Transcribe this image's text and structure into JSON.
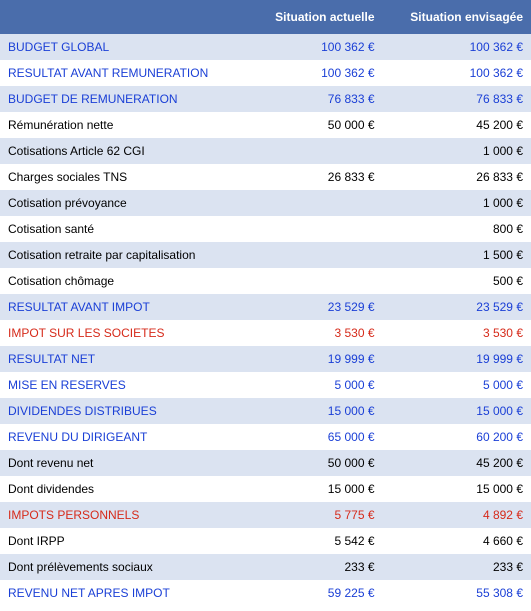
{
  "colors": {
    "header_bg": "#4a6dab",
    "header_text": "#ffffff",
    "row_alt_bg": "#dbe3f1",
    "row_bg": "#ffffff",
    "text_blue": "#1a3fd6",
    "text_red": "#d62a1a",
    "text_black": "#000000"
  },
  "table": {
    "headers": [
      "",
      "Situation actuelle",
      "Situation envisagée"
    ],
    "currency_suffix": " €",
    "rows": [
      {
        "label": "BUDGET GLOBAL",
        "actuelle": "100 362 €",
        "envisagee": "100 362 €",
        "color": "blue",
        "alt": true
      },
      {
        "label": "RESULTAT AVANT REMUNERATION",
        "actuelle": "100 362 €",
        "envisagee": "100 362 €",
        "color": "blue",
        "alt": false
      },
      {
        "label": "BUDGET DE REMUNERATION",
        "actuelle": "76 833 €",
        "envisagee": "76 833 €",
        "color": "blue",
        "alt": true
      },
      {
        "label": "Rémunération nette",
        "actuelle": "50 000 €",
        "envisagee": "45 200 €",
        "color": "black",
        "alt": false
      },
      {
        "label": "Cotisations Article 62 CGI",
        "actuelle": "",
        "envisagee": "1 000 €",
        "color": "black",
        "alt": true
      },
      {
        "label": "Charges sociales TNS",
        "actuelle": "26 833 €",
        "envisagee": "26 833 €",
        "color": "black",
        "alt": false
      },
      {
        "label": "Cotisation prévoyance",
        "actuelle": "",
        "envisagee": "1 000 €",
        "color": "black",
        "alt": true
      },
      {
        "label": "Cotisation santé",
        "actuelle": "",
        "envisagee": "800 €",
        "color": "black",
        "alt": false
      },
      {
        "label": "Cotisation retraite par capitalisation",
        "actuelle": "",
        "envisagee": "1 500 €",
        "color": "black",
        "alt": true
      },
      {
        "label": "Cotisation chômage",
        "actuelle": "",
        "envisagee": "500 €",
        "color": "black",
        "alt": false
      },
      {
        "label": "RESULTAT AVANT IMPOT",
        "actuelle": "23 529 €",
        "envisagee": "23 529 €",
        "color": "blue",
        "alt": true
      },
      {
        "label": "IMPOT SUR LES SOCIETES",
        "actuelle": "3 530 €",
        "envisagee": "3 530 €",
        "color": "red",
        "alt": false
      },
      {
        "label": "RESULTAT NET",
        "actuelle": "19 999 €",
        "envisagee": "19 999 €",
        "color": "blue",
        "alt": true
      },
      {
        "label": "MISE EN RESERVES",
        "actuelle": "5 000 €",
        "envisagee": "5 000 €",
        "color": "blue",
        "alt": false
      },
      {
        "label": "DIVIDENDES DISTRIBUES",
        "actuelle": "15 000 €",
        "envisagee": "15 000 €",
        "color": "blue",
        "alt": true
      },
      {
        "label": "REVENU DU DIRIGEANT",
        "actuelle": "65 000 €",
        "envisagee": "60 200 €",
        "color": "blue",
        "alt": false
      },
      {
        "label": "Dont revenu net",
        "actuelle": "50 000 €",
        "envisagee": "45 200 €",
        "color": "black",
        "alt": true
      },
      {
        "label": "Dont dividendes",
        "actuelle": "15 000 €",
        "envisagee": "15 000 €",
        "color": "black",
        "alt": false
      },
      {
        "label": "IMPOTS PERSONNELS",
        "actuelle": "5 775 €",
        "envisagee": "4 892 €",
        "color": "red",
        "alt": true
      },
      {
        "label": "Dont IRPP",
        "actuelle": "5 542 €",
        "envisagee": "4 660 €",
        "color": "black",
        "alt": false
      },
      {
        "label": "Dont prélèvements sociaux",
        "actuelle": "233 €",
        "envisagee": "233 €",
        "color": "black",
        "alt": true
      },
      {
        "label": "REVENU NET APRES IMPOT",
        "actuelle": "59 225 €",
        "envisagee": "55 308 €",
        "color": "blue",
        "alt": false
      }
    ]
  }
}
